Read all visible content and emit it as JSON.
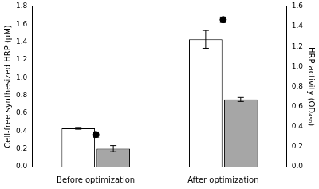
{
  "chart_data": {
    "type": "bar",
    "categories": [
      "Before optimization",
      "After optimization"
    ],
    "y_label": "Cell-free synthesized HRP (µM)",
    "y2_label": "HRP activity (OD₄₅₀)",
    "ylim": [
      0,
      1.8
    ],
    "yticks": [
      {
        "value": 0,
        "label": "0.0"
      },
      0.2,
      0.4,
      0.6,
      0.8,
      {
        "value": 1,
        "label": "1.0"
      },
      1.2,
      1.4,
      1.6,
      1.8
    ],
    "y2lim": [
      0,
      1.6
    ],
    "y2ticks": [
      {
        "value": 0,
        "label": "0.0"
      },
      0.2,
      0.4,
      0.6,
      0.8,
      {
        "value": 1,
        "label": "1.0"
      },
      1.2,
      1.4,
      1.6
    ],
    "grid": false,
    "series": [
      {
        "type": "bar",
        "color": "#ffffff",
        "values": [
          0.43,
          1.43
        ],
        "errors": [
          0.01,
          0.1
        ]
      },
      {
        "type": "bar",
        "color": "#a6a6a6",
        "values": [
          0.18,
          0.67
        ],
        "errors": [
          0.03,
          0.02
        ],
        "axis": "y2"
      },
      {
        "type": "scatter",
        "marker": "circle",
        "color": "#000000",
        "values": [
          0.36,
          1.65
        ],
        "errors": [
          0.03,
          0.03
        ]
      }
    ]
  }
}
